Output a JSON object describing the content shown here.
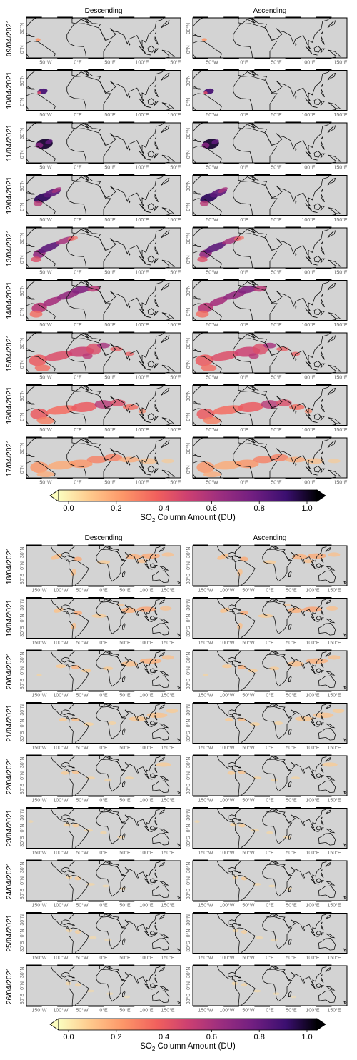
{
  "chart_data": [
    {
      "type": "heatmap",
      "columns": [
        "Descending",
        "Ascending"
      ],
      "dates": [
        "09/04/2021",
        "10/04/2021",
        "11/04/2021",
        "12/04/2021",
        "13/04/2021",
        "14/04/2021",
        "15/04/2021",
        "16/04/2021",
        "17/04/2021"
      ],
      "lon_ticks": [
        "50°W",
        "0°E",
        "50°E",
        "100°E",
        "150°E"
      ],
      "lat_ticks": [
        "0°N",
        "30°N"
      ],
      "map_extent": {
        "lon": [
          -80,
          160
        ],
        "lat": [
          -12,
          45
        ]
      },
      "colorbar": {
        "label_main": "SO",
        "label_sub": "2",
        "label_rest": " Column Amount (DU)",
        "ticks": [
          "0.0",
          "0.2",
          "0.4",
          "0.6",
          "0.8",
          "1.0"
        ],
        "range": [
          0,
          1
        ],
        "colormap": "magma_r",
        "extend": "both"
      },
      "background_color": "#d3d3d3"
    },
    {
      "type": "heatmap",
      "columns": [
        "Descending",
        "Ascending"
      ],
      "dates": [
        "18/04/2021",
        "19/04/2021",
        "20/04/2021",
        "21/04/2021",
        "22/04/2021",
        "23/04/2021",
        "24/04/2021",
        "25/04/2021",
        "26/04/2021"
      ],
      "lon_ticks": [
        "150°W",
        "100°W",
        "50°W",
        "0°E",
        "50°E",
        "100°E",
        "150°E"
      ],
      "lat_ticks": [
        "30°S",
        "0°N",
        "30°N"
      ],
      "map_extent": {
        "lon": [
          -180,
          180
        ],
        "lat": [
          -45,
          45
        ]
      },
      "colorbar": {
        "label_main": "SO",
        "label_sub": "2",
        "label_rest": " Column Amount (DU)",
        "ticks": [
          "0.0",
          "0.2",
          "0.4",
          "0.6",
          "0.8",
          "1.0"
        ],
        "range": [
          0,
          1
        ],
        "colormap": "magma_r",
        "extend": "both"
      },
      "background_color": "#d3d3d3"
    }
  ]
}
